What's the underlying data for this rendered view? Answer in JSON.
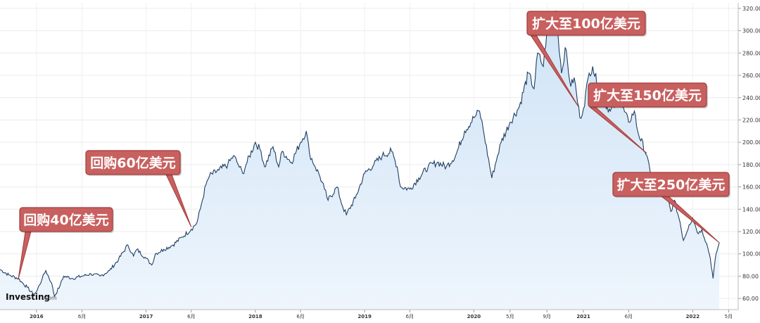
{
  "logo": {
    "main": "Investing",
    "suffix": ".com"
  },
  "chart_data": {
    "type": "area",
    "ylim": [
      50,
      325
    ],
    "yticks": [
      60,
      80,
      100,
      120,
      140,
      160,
      180,
      200,
      220,
      240,
      260,
      280,
      300,
      320
    ],
    "ytick_labels": [
      "60.00",
      "80.00",
      "100.00",
      "120.00",
      "140.00",
      "160.00",
      "180.00",
      "200.00",
      "220.00",
      "240.00",
      "260.00",
      "280.00",
      "300.00",
      "320.00"
    ],
    "xticks": [
      {
        "label": "2016",
        "major": true
      },
      {
        "label": "6月",
        "major": false
      },
      {
        "label": "2017",
        "major": true
      },
      {
        "label": "6月",
        "major": false
      },
      {
        "label": "2018",
        "major": true
      },
      {
        "label": "6月",
        "major": false
      },
      {
        "label": "2019",
        "major": true
      },
      {
        "label": "6月",
        "major": false
      },
      {
        "label": "2020",
        "major": true
      },
      {
        "label": "5月",
        "major": false
      },
      {
        "label": "9月",
        "major": false
      },
      {
        "label": "2021",
        "major": true
      },
      {
        "label": "6月",
        "major": false
      },
      {
        "label": "2022",
        "major": true
      },
      {
        "label": "5月",
        "major": false
      }
    ],
    "series": [
      {
        "values": [
          [
            "2015-09",
            86
          ],
          [
            "2015-10",
            81
          ],
          [
            "2015-11",
            78
          ],
          [
            "2015-11-15",
            74
          ],
          [
            "2015-12",
            70
          ],
          [
            "2015-12-20",
            64
          ],
          [
            "2016-01",
            66
          ],
          [
            "2016-01-20",
            78
          ],
          [
            "2016-02",
            85
          ],
          [
            "2016-02-20",
            74
          ],
          [
            "2016-03",
            62
          ],
          [
            "2016-03-20",
            72
          ],
          [
            "2016-04",
            80
          ],
          [
            "2016-05",
            78
          ],
          [
            "2016-06",
            80
          ],
          [
            "2016-07",
            82
          ],
          [
            "2016-08",
            80
          ],
          [
            "2016-09",
            85
          ],
          [
            "2016-10",
            95
          ],
          [
            "2016-11",
            108
          ],
          [
            "2016-11-20",
            98
          ],
          [
            "2016-12",
            104
          ],
          [
            "2017-01",
            96
          ],
          [
            "2017-01-20",
            90
          ],
          [
            "2017-02",
            100
          ],
          [
            "2017-03",
            104
          ],
          [
            "2017-04",
            108
          ],
          [
            "2017-05",
            115
          ],
          [
            "2017-06",
            122
          ],
          [
            "2017-06-20",
            128
          ],
          [
            "2017-07",
            140
          ],
          [
            "2017-07-20",
            162
          ],
          [
            "2017-08",
            170
          ],
          [
            "2017-09",
            175
          ],
          [
            "2017-10",
            180
          ],
          [
            "2017-10-20",
            188
          ],
          [
            "2017-11",
            182
          ],
          [
            "2017-11-20",
            172
          ],
          [
            "2017-12",
            180
          ],
          [
            "2018-01",
            200
          ],
          [
            "2018-01-20",
            192
          ],
          [
            "2018-02",
            178
          ],
          [
            "2018-03",
            196
          ],
          [
            "2018-03-20",
            178
          ],
          [
            "2018-04",
            192
          ],
          [
            "2018-05",
            182
          ],
          [
            "2018-06",
            200
          ],
          [
            "2018-06-20",
            210
          ],
          [
            "2018-07",
            190
          ],
          [
            "2018-07-20",
            178
          ],
          [
            "2018-08",
            172
          ],
          [
            "2018-08-20",
            158
          ],
          [
            "2018-09",
            148
          ],
          [
            "2018-10",
            160
          ],
          [
            "2018-10-20",
            142
          ],
          [
            "2018-11",
            135
          ],
          [
            "2018-12",
            150
          ],
          [
            "2019-01",
            172
          ],
          [
            "2019-02",
            180
          ],
          [
            "2019-03",
            188
          ],
          [
            "2019-04",
            192
          ],
          [
            "2019-04-20",
            178
          ],
          [
            "2019-05",
            160
          ],
          [
            "2019-06",
            158
          ],
          [
            "2019-07",
            168
          ],
          [
            "2019-08",
            178
          ],
          [
            "2019-09",
            182
          ],
          [
            "2019-10",
            178
          ],
          [
            "2019-11",
            188
          ],
          [
            "2019-12",
            210
          ],
          [
            "2020-01",
            222
          ],
          [
            "2020-01-20",
            228
          ],
          [
            "2020-02",
            212
          ],
          [
            "2020-03",
            168
          ],
          [
            "2020-03-20",
            188
          ],
          [
            "2020-04",
            200
          ],
          [
            "2020-05",
            218
          ],
          [
            "2020-06",
            232
          ],
          [
            "2020-07",
            262
          ],
          [
            "2020-07-20",
            248
          ],
          [
            "2020-08",
            280
          ],
          [
            "2020-08-20",
            268
          ],
          [
            "2020-09",
            300
          ],
          [
            "2020-09-20",
            310
          ],
          [
            "2020-10",
            318
          ],
          [
            "2020-10-20",
            262
          ],
          [
            "2020-11",
            285
          ],
          [
            "2020-11-20",
            250
          ],
          [
            "2020-12",
            258
          ],
          [
            "2020-12-20",
            222
          ],
          [
            "2021-01",
            230
          ],
          [
            "2021-01-20",
            262
          ],
          [
            "2021-02",
            268
          ],
          [
            "2021-03",
            240
          ],
          [
            "2021-04",
            228
          ],
          [
            "2021-05",
            238
          ],
          [
            "2021-06",
            218
          ],
          [
            "2021-06-20",
            228
          ],
          [
            "2021-07",
            210
          ],
          [
            "2021-08",
            188
          ],
          [
            "2021-08-20",
            160
          ],
          [
            "2021-09",
            152
          ],
          [
            "2021-09-20",
            170
          ],
          [
            "2021-10",
            160
          ],
          [
            "2021-10-20",
            138
          ],
          [
            "2021-11",
            148
          ],
          [
            "2021-11-20",
            128
          ],
          [
            "2021-12",
            112
          ],
          [
            "2021-12-20",
            126
          ],
          [
            "2022-01",
            132
          ],
          [
            "2022-01-20",
            118
          ],
          [
            "2022-02",
            122
          ],
          [
            "2022-02-20",
            106
          ],
          [
            "2022-03",
            96
          ],
          [
            "2022-03-10",
            78
          ],
          [
            "2022-03-20",
            100
          ],
          [
            "2022-03-31",
            110
          ]
        ]
      }
    ],
    "annotations": [
      {
        "text": "回购40亿美元",
        "point": [
          "2015-11-01",
          77
        ]
      },
      {
        "text": "回购60亿美元",
        "point": [
          "2017-06-01",
          124
        ]
      },
      {
        "text": "扩大至100亿美元",
        "point": [
          "2020-12-15",
          232
        ]
      },
      {
        "text": "扩大至150亿美元",
        "point": [
          "2021-08-01",
          190
        ]
      },
      {
        "text": "扩大至250亿美元",
        "point": [
          "2022-03-31",
          110
        ]
      }
    ]
  }
}
